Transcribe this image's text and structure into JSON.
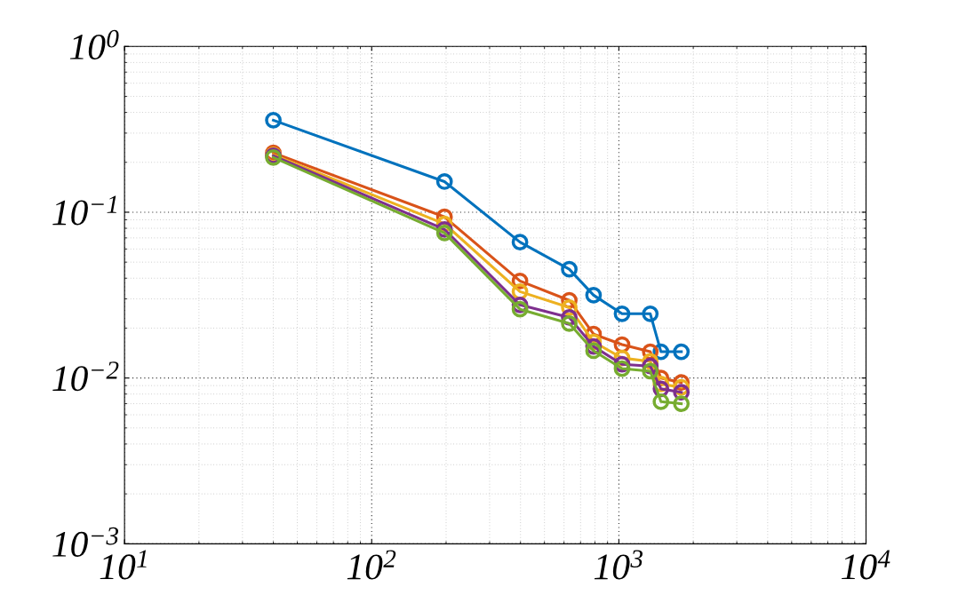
{
  "chart_data": {
    "type": "line",
    "log": "xy",
    "grid": true,
    "marker": "circle",
    "line_style": "solid",
    "x": [
      40,
      197,
      398,
      630,
      790,
      1030,
      1340,
      1480,
      1790
    ],
    "xlim": [
      10,
      10000
    ],
    "ylim": [
      0.001,
      1
    ],
    "xticks": [
      {
        "value": 10,
        "label": "10$^{1}$"
      },
      {
        "value": 100,
        "label": "10$^{2}$"
      },
      {
        "value": 1000,
        "label": "10$^{3}$"
      },
      {
        "value": 10000,
        "label": "10$^{4}$"
      }
    ],
    "yticks": [
      {
        "value": 0.001,
        "label": "10$^{−3}$"
      },
      {
        "value": 0.01,
        "label": "10$^{−2}$"
      },
      {
        "value": 0.1,
        "label": "10$^{−1}$"
      },
      {
        "value": 1,
        "label": "10$^{0}$"
      }
    ],
    "series": [
      {
        "color": "#0072bd",
        "values": [
          0.359,
          0.153,
          0.066,
          0.0453,
          0.0316,
          0.0244,
          0.0244,
          0.0144,
          0.0144
        ]
      },
      {
        "color": "#d95319",
        "values": [
          0.228,
          0.0937,
          0.0385,
          0.0294,
          0.0184,
          0.0159,
          0.0144,
          0.01,
          0.0094
        ]
      },
      {
        "color": "#edb120",
        "values": [
          0.222,
          0.085,
          0.0332,
          0.0266,
          0.0165,
          0.0132,
          0.0126,
          0.0092,
          0.0088
        ]
      },
      {
        "color": "#7e2f8e",
        "values": [
          0.219,
          0.0788,
          0.0276,
          0.0232,
          0.0155,
          0.0121,
          0.0118,
          0.0086,
          0.0082
        ]
      },
      {
        "color": "#77ac30",
        "values": [
          0.214,
          0.075,
          0.026,
          0.0213,
          0.0146,
          0.0114,
          0.011,
          0.0072,
          0.007
        ]
      }
    ]
  }
}
